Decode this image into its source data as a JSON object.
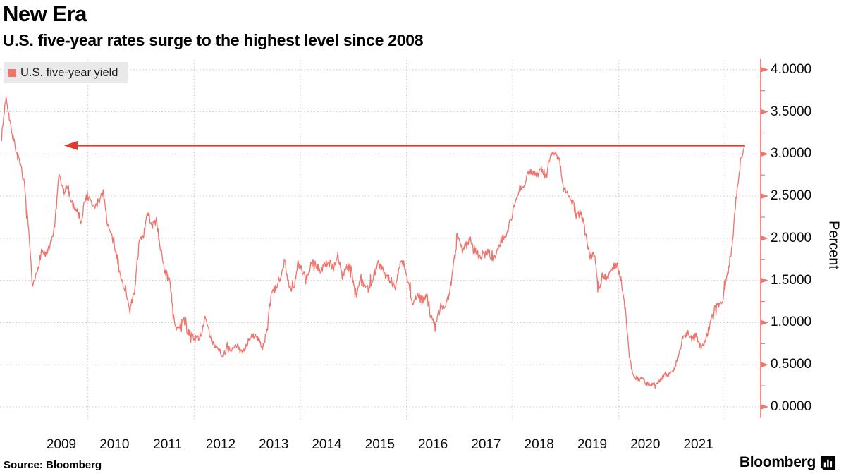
{
  "header": {
    "title": "New Era",
    "subtitle": "U.S. five-year rates surge to the highest level since 2008"
  },
  "legend": {
    "label": "U.S. five-year yield"
  },
  "footer": {
    "source": "Source: Bloomberg",
    "brand": "Bloomberg"
  },
  "colors": {
    "line": "#f0736c",
    "axis": "#f0736c",
    "arrow": "#e03a2d",
    "grid": "#c9c9c9",
    "legend_bg": "#e9e9e9",
    "text": "#000000"
  },
  "chart_data": {
    "type": "line",
    "title": "New Era",
    "subtitle": "U.S. five-year rates surge to the highest level since 2008",
    "ylabel": "Percent",
    "ylim": [
      0.0,
      4.0
    ],
    "grid": "dashed, horizontal every 0.5, vertical every 2 years",
    "legend_position": "top-left",
    "yticks": [
      {
        "v": 4.0,
        "label": "4.0000"
      },
      {
        "v": 3.5,
        "label": "3.5000"
      },
      {
        "v": 3.0,
        "label": "3.0000"
      },
      {
        "v": 2.5,
        "label": "2.5000"
      },
      {
        "v": 2.0,
        "label": "2.0000"
      },
      {
        "v": 1.5,
        "label": "1.5000"
      },
      {
        "v": 1.0,
        "label": "1.0000"
      },
      {
        "v": 0.5,
        "label": "0.5000"
      },
      {
        "v": 0.0,
        "label": "0.0000"
      }
    ],
    "minor_tick_step": 0.25,
    "xticks": [
      "2009",
      "2010",
      "2011",
      "2012",
      "2013",
      "2014",
      "2015",
      "2016",
      "2017",
      "2018",
      "2019",
      "2020",
      "2021"
    ],
    "annotation": {
      "type": "arrow-left",
      "y_value": 3.1,
      "meaning": "2022 surge matches 2008 level"
    },
    "series": [
      {
        "name": "U.S. five-year yield",
        "start": "2008-05",
        "interval": "monthly",
        "values": [
          3.2,
          3.7,
          3.35,
          3.1,
          2.9,
          2.7,
          2.15,
          1.4,
          1.6,
          1.85,
          1.8,
          1.9,
          2.15,
          2.75,
          2.55,
          2.6,
          2.4,
          2.35,
          2.2,
          2.5,
          2.45,
          2.35,
          2.45,
          2.55,
          2.15,
          2.0,
          1.8,
          1.5,
          1.4,
          1.15,
          1.35,
          1.95,
          2.0,
          2.3,
          2.15,
          2.2,
          1.85,
          1.6,
          1.5,
          1.0,
          0.9,
          1.05,
          0.9,
          0.85,
          0.8,
          0.85,
          1.05,
          0.85,
          0.75,
          0.7,
          0.6,
          0.7,
          0.65,
          0.75,
          0.65,
          0.7,
          0.8,
          0.85,
          0.8,
          0.7,
          0.9,
          1.35,
          1.4,
          1.55,
          1.75,
          1.4,
          1.4,
          1.7,
          1.6,
          1.55,
          1.7,
          1.7,
          1.6,
          1.7,
          1.7,
          1.65,
          1.8,
          1.55,
          1.65,
          1.65,
          1.3,
          1.5,
          1.45,
          1.4,
          1.55,
          1.7,
          1.65,
          1.55,
          1.5,
          1.4,
          1.7,
          1.7,
          1.45,
          1.2,
          1.35,
          1.25,
          1.35,
          1.05,
          1.0,
          1.15,
          1.2,
          1.3,
          1.6,
          2.0,
          1.9,
          1.9,
          2.0,
          1.85,
          1.8,
          1.8,
          1.85,
          1.75,
          1.85,
          2.0,
          2.05,
          2.2,
          2.4,
          2.6,
          2.6,
          2.75,
          2.8,
          2.75,
          2.8,
          2.75,
          2.95,
          3.02,
          2.95,
          2.6,
          2.5,
          2.45,
          2.25,
          2.3,
          2.05,
          1.8,
          1.8,
          1.4,
          1.55,
          1.55,
          1.65,
          1.7,
          1.5,
          1.15,
          0.55,
          0.35,
          0.33,
          0.32,
          0.27,
          0.27,
          0.27,
          0.32,
          0.4,
          0.38,
          0.45,
          0.6,
          0.85,
          0.85,
          0.8,
          0.85,
          0.7,
          0.78,
          0.95,
          1.15,
          1.2,
          1.25,
          1.55,
          1.85,
          2.45,
          2.9,
          3.1
        ]
      }
    ]
  }
}
